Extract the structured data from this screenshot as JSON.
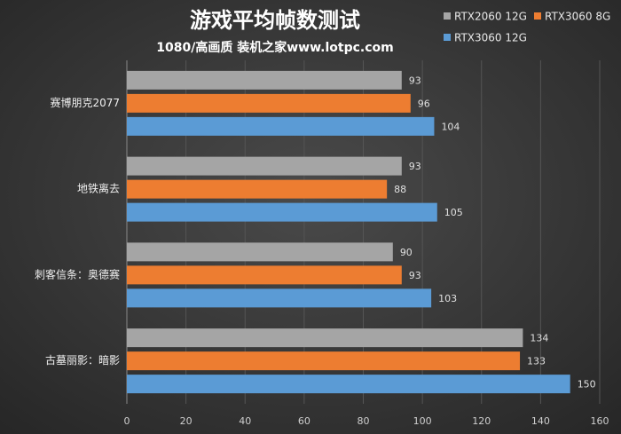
{
  "chart_data": {
    "type": "bar",
    "orientation": "horizontal",
    "title": "游戏平均帧数测试",
    "subtitle": "1080/高画质 装机之家www.lotpc.com",
    "categories": [
      "赛博朋克2077",
      "地铁离去",
      "刺客信条：奥德赛",
      "古墓丽影：暗影"
    ],
    "series": [
      {
        "name": "RTX2060 12G",
        "color": "#a5a5a5",
        "values": [
          93,
          93,
          90,
          134
        ]
      },
      {
        "name": "RTX3060 8G",
        "color": "#ed7d31",
        "values": [
          96,
          88,
          93,
          133
        ]
      },
      {
        "name": "RTX3060 12G",
        "color": "#5b9bd5",
        "values": [
          104,
          105,
          103,
          150
        ]
      }
    ],
    "xlim": [
      0,
      160
    ],
    "xticks": [
      0,
      20,
      40,
      60,
      80,
      100,
      120,
      140,
      160
    ],
    "grid": true,
    "legend": "top-right"
  }
}
